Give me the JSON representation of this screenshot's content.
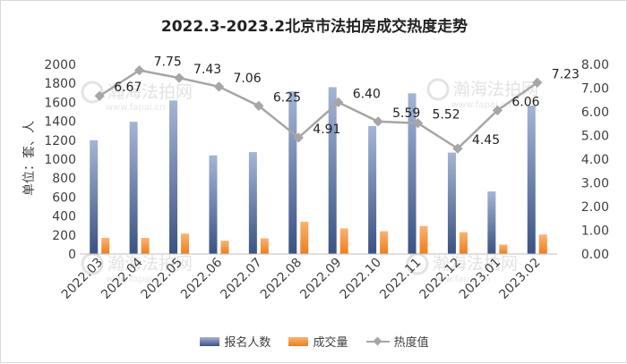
{
  "chart_data": {
    "type": "bar",
    "title": "2022.3-2023.2北京市法拍房成交热度走势",
    "ylabel": "单位：套、人",
    "categories": [
      "2022.03",
      "2022.04",
      "2022.05",
      "2022.06",
      "2022.07",
      "2022.08",
      "2022.09",
      "2022.10",
      "2022.11",
      "2022.12",
      "2023.01",
      "2023.02"
    ],
    "series": [
      {
        "name": "报名人数",
        "axis": "left",
        "kind": "bar",
        "values": [
          1200,
          1395,
          1620,
          1040,
          1075,
          1715,
          1760,
          1350,
          1695,
          1070,
          660,
          1565
        ]
      },
      {
        "name": "成交量",
        "axis": "left",
        "kind": "bar",
        "values": [
          170,
          170,
          215,
          140,
          165,
          340,
          270,
          240,
          295,
          230,
          100,
          205
        ]
      },
      {
        "name": "热度值",
        "axis": "right",
        "kind": "line",
        "values": [
          6.67,
          7.75,
          7.43,
          7.06,
          6.25,
          4.91,
          6.4,
          5.59,
          5.52,
          4.45,
          6.06,
          7.23
        ]
      }
    ],
    "data_labels": [
      "6.67",
      "7.75",
      "7.43",
      "7.06",
      "6.25",
      "4.91",
      "6.40",
      "5.59",
      "5.52",
      "4.45",
      "6.06",
      "7.23"
    ],
    "y_left": {
      "min": 0,
      "max": 2000,
      "ticks": [
        "0",
        "200",
        "400",
        "600",
        "800",
        "1000",
        "1200",
        "1400",
        "1600",
        "1800",
        "2000"
      ]
    },
    "y_right": {
      "min": 0,
      "max": 8,
      "ticks": [
        "0.00",
        "1.00",
        "2.00",
        "3.00",
        "4.00",
        "5.00",
        "6.00",
        "7.00",
        "8.00"
      ]
    },
    "grid": false,
    "legend_position": "bottom",
    "colors": {
      "applicants_top": "#a4b5d6",
      "applicants_bottom": "#3b5283",
      "volume_top": "#fbb36f",
      "volume_bottom": "#ef7d1c",
      "heat": "#a6a6a6"
    }
  },
  "watermark": {
    "name": "瀚海法拍网",
    "url": "www.fapai.cn"
  }
}
